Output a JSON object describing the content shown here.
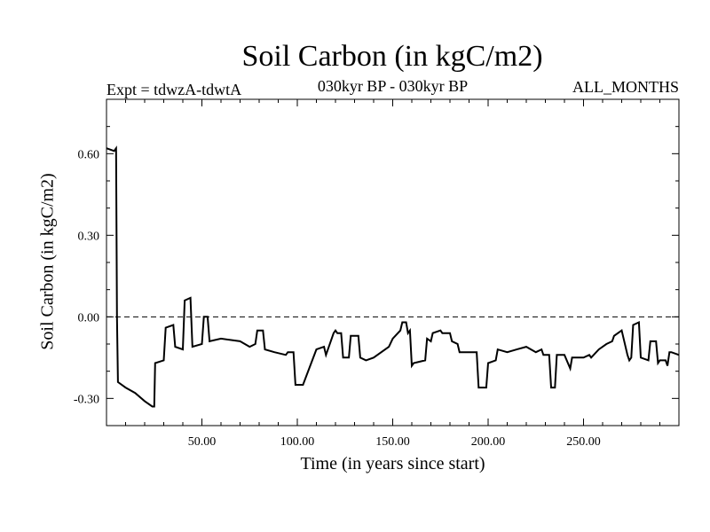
{
  "chart_data": {
    "type": "line",
    "title": "Soil Carbon (in kgC/m2)",
    "subtitle_left": "Expt = tdwzA-tdwtA",
    "subtitle_center": "030kyr BP - 030kyr BP",
    "subtitle_right": "ALL_MONTHS",
    "xlabel": "Time (in years since start)",
    "ylabel": "Soil Carbon (in kgC/m2)",
    "xlim": [
      0,
      300
    ],
    "ylim": [
      -0.4,
      0.8
    ],
    "xticks": [
      50,
      100,
      150,
      200,
      250
    ],
    "xtick_labels": [
      "50.00",
      "100.00",
      "150.00",
      "200.00",
      "250.00"
    ],
    "yticks": [
      -0.3,
      0.0,
      0.3,
      0.6
    ],
    "ytick_labels": [
      "-0.30",
      "0.00",
      "0.30",
      "0.60"
    ],
    "zero_line": "dashed",
    "series": [
      {
        "color": "#000000",
        "x": [
          0,
          4,
          5,
          5.5,
          6,
          10,
          15,
          20,
          24,
          25,
          25.5,
          30,
          31,
          35,
          36,
          40,
          41,
          44,
          45,
          50,
          51,
          53,
          54,
          60,
          70,
          75,
          78,
          79,
          82,
          83,
          88,
          94,
          95,
          98,
          99,
          103,
          110,
          114,
          115,
          119,
          120,
          121,
          123,
          124,
          127,
          128,
          132,
          133,
          136,
          140,
          148,
          150,
          154,
          155,
          157,
          158,
          159,
          160,
          161,
          167,
          168,
          170,
          171,
          175,
          176,
          180,
          181,
          184,
          185,
          190,
          194,
          195,
          196,
          199,
          200,
          204,
          205,
          210,
          215,
          220,
          225,
          228,
          229,
          232,
          233,
          234,
          235,
          236,
          240,
          243,
          244,
          250,
          253,
          254,
          258,
          262,
          265,
          266,
          270,
          273,
          274,
          275,
          276,
          279,
          280,
          284,
          285,
          288,
          289,
          290,
          293,
          294,
          295,
          296,
          300
        ],
        "y": [
          0.62,
          0.61,
          0.62,
          0.0,
          -0.24,
          -0.26,
          -0.28,
          -0.31,
          -0.33,
          -0.33,
          -0.17,
          -0.16,
          -0.04,
          -0.03,
          -0.11,
          -0.12,
          0.06,
          0.07,
          -0.11,
          -0.1,
          0.0,
          0.0,
          -0.09,
          -0.08,
          -0.09,
          -0.11,
          -0.1,
          -0.05,
          -0.05,
          -0.12,
          -0.13,
          -0.14,
          -0.13,
          -0.13,
          -0.25,
          -0.25,
          -0.12,
          -0.11,
          -0.14,
          -0.06,
          -0.05,
          -0.06,
          -0.06,
          -0.15,
          -0.15,
          -0.07,
          -0.07,
          -0.15,
          -0.16,
          -0.15,
          -0.11,
          -0.08,
          -0.05,
          -0.02,
          -0.02,
          -0.06,
          -0.05,
          -0.18,
          -0.17,
          -0.16,
          -0.08,
          -0.09,
          -0.06,
          -0.05,
          -0.06,
          -0.06,
          -0.09,
          -0.1,
          -0.13,
          -0.13,
          -0.13,
          -0.26,
          -0.26,
          -0.26,
          -0.17,
          -0.16,
          -0.12,
          -0.13,
          -0.12,
          -0.11,
          -0.13,
          -0.12,
          -0.14,
          -0.14,
          -0.26,
          -0.26,
          -0.26,
          -0.14,
          -0.14,
          -0.19,
          -0.15,
          -0.15,
          -0.14,
          -0.15,
          -0.12,
          -0.1,
          -0.09,
          -0.07,
          -0.05,
          -0.14,
          -0.16,
          -0.15,
          -0.03,
          -0.02,
          -0.15,
          -0.16,
          -0.09,
          -0.09,
          -0.17,
          -0.16,
          -0.16,
          -0.18,
          -0.13,
          -0.13,
          -0.14
        ]
      }
    ]
  }
}
